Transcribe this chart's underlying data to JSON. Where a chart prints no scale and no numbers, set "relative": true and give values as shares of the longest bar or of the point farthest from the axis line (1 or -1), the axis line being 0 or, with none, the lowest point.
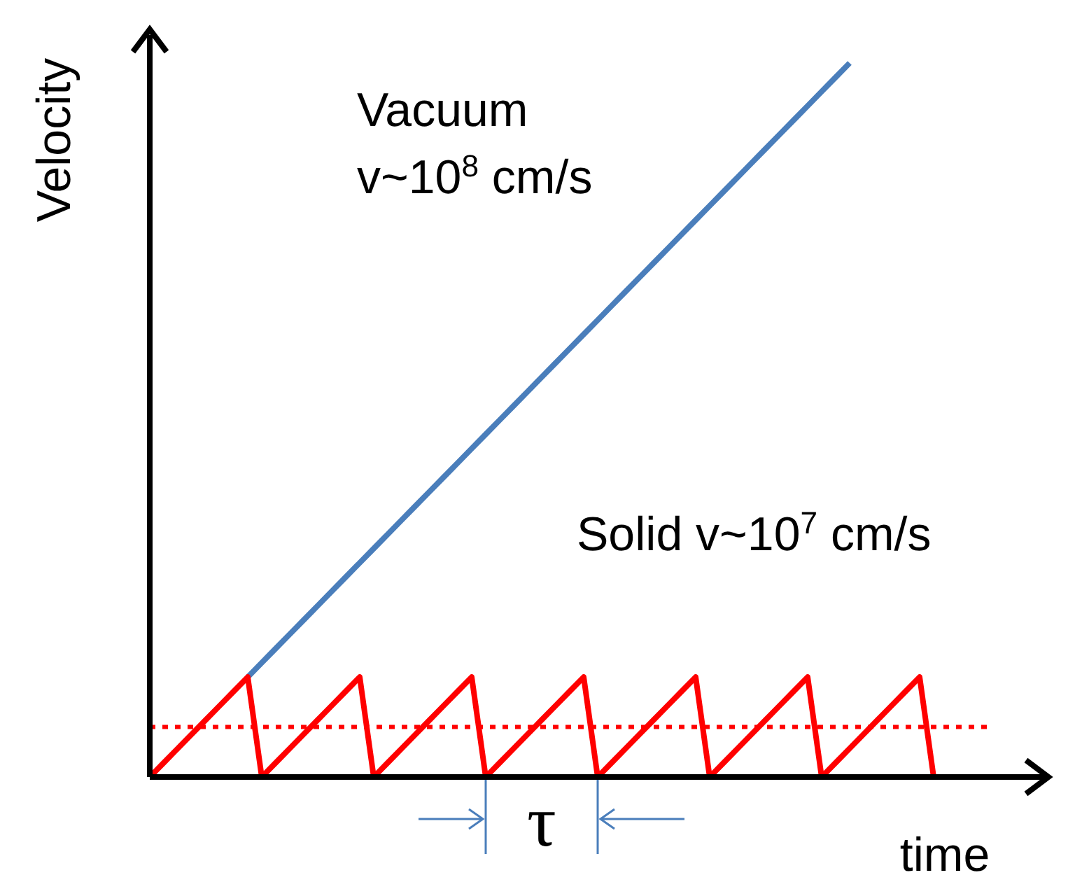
{
  "chart_data": {
    "type": "line",
    "relative": true,
    "xlabel": "time",
    "ylabel": "Velocity",
    "marker": "none",
    "line_style": "solid",
    "categories": [
      null,
      null,
      null,
      null,
      null,
      null,
      null,
      null,
      null,
      null,
      null,
      null,
      null,
      null,
      null,
      null,
      null,
      null,
      null,
      null,
      null,
      null,
      null,
      null,
      null,
      null,
      null,
      null,
      null,
      null,
      null,
      null,
      null,
      null,
      null,
      null,
      null,
      null,
      null,
      null,
      null,
      null,
      null,
      null,
      null,
      null,
      null,
      null,
      null,
      null,
      null,
      null,
      null,
      null,
      null,
      null,
      null,
      null,
      null,
      null,
      null,
      null,
      null,
      null
    ],
    "series": [
      {
        "name": "Vacuum v~10$^{8}$ cm/s",
        "color": "#4a7ebb",
        "values": [
          null,
          null,
          null,
          null,
          null,
          null,
          null,
          0.14,
          0.16,
          0.18,
          0.2,
          0.22,
          0.24,
          0.26,
          0.28,
          0.3,
          0.32,
          0.34,
          0.36,
          0.38,
          0.4,
          0.42,
          0.44,
          0.46,
          0.48,
          0.5,
          0.52,
          0.54,
          0.56,
          0.58,
          0.6,
          0.62,
          0.64,
          0.66,
          0.68,
          0.7,
          0.72,
          0.74,
          0.76,
          0.78,
          0.8,
          0.82,
          0.84,
          0.86,
          0.88,
          0.9,
          0.92,
          0.94,
          0.96,
          0.98,
          1,
          null,
          null,
          null,
          null,
          null,
          null,
          null,
          null,
          null,
          null,
          null,
          null,
          null
        ]
      },
      {
        "name": "Solid v~10$^{7}$ cm/s",
        "color": "#ff0000",
        "values": [
          0,
          0.02,
          0.04,
          0.06,
          0.08,
          0.1,
          0.12,
          0.14,
          0,
          0.02,
          0.04,
          0.06,
          0.08,
          0.1,
          0.12,
          0.14,
          0,
          0.02,
          0.04,
          0.06,
          0.08,
          0.1,
          0.12,
          0.14,
          0,
          0.02,
          0.04,
          0.06,
          0.08,
          0.1,
          0.12,
          0.14,
          0,
          0.02,
          0.04,
          0.06,
          0.08,
          0.1,
          0.12,
          0.14,
          0,
          0.02,
          0.04,
          0.06,
          0.08,
          0.1,
          0.12,
          0.14,
          0,
          0.02,
          0.04,
          0.06,
          0.08,
          0.1,
          0.12,
          0.14,
          0,
          null,
          null,
          null,
          null,
          null,
          null,
          null
        ]
      }
    ],
    "ref_lines": [
      {
        "axis": "y",
        "value": 0.07,
        "color": "#ff0000",
        "line_style": "dotted"
      }
    ],
    "annotations": [
      "τ"
    ]
  }
}
